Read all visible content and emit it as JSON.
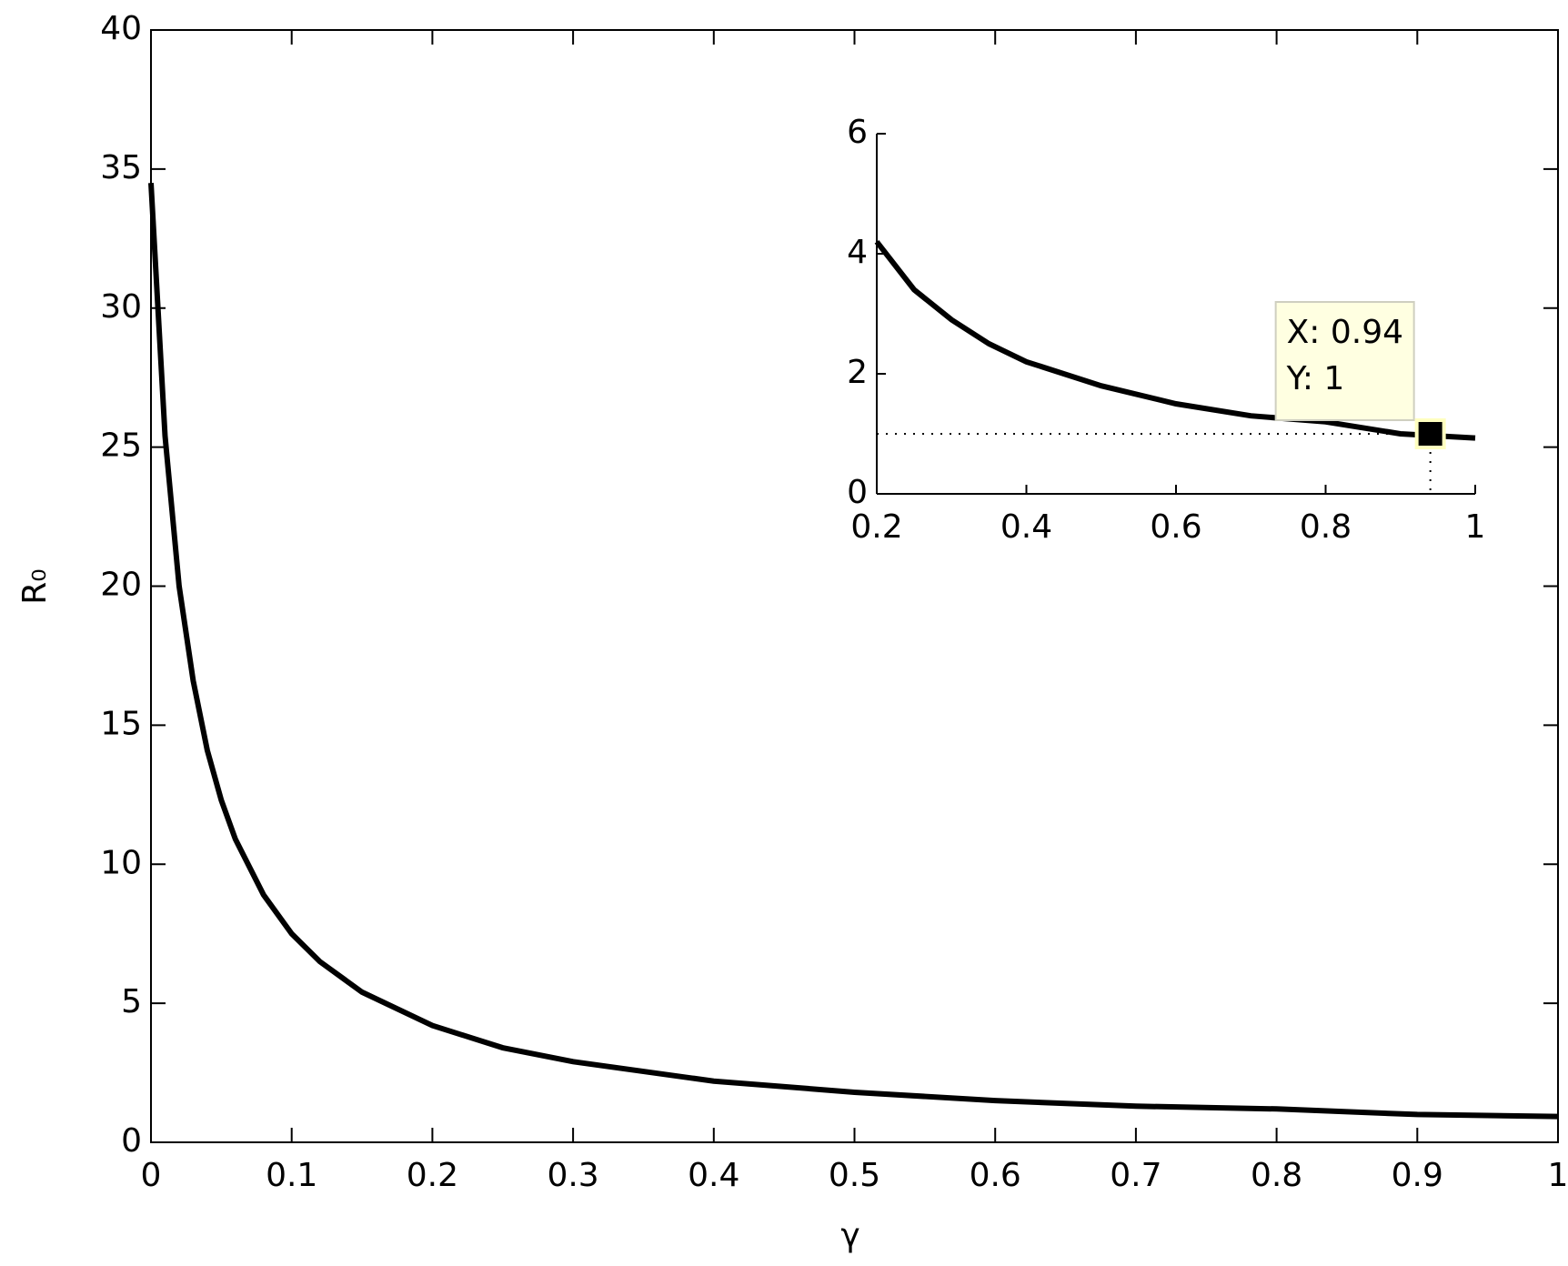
{
  "chart_data": [
    {
      "type": "line",
      "xlabel": "γ",
      "ylabel": "R₀",
      "xlim": [
        0,
        1
      ],
      "ylim": [
        0,
        40
      ],
      "xticks": [
        0,
        0.1,
        0.2,
        0.3,
        0.4,
        0.5,
        0.6,
        0.7,
        0.8,
        0.9,
        1
      ],
      "yticks": [
        0,
        5,
        10,
        15,
        20,
        25,
        30,
        35,
        40
      ],
      "series": [
        {
          "color": "#000000",
          "x": [
            0,
            0.01,
            0.02,
            0.03,
            0.04,
            0.05,
            0.06,
            0.08,
            0.1,
            0.12,
            0.15,
            0.2,
            0.25,
            0.3,
            0.4,
            0.5,
            0.6,
            0.7,
            0.8,
            0.9,
            1
          ],
          "values": [
            34.5,
            25.4,
            20.0,
            16.6,
            14.1,
            12.3,
            10.9,
            8.9,
            7.5,
            6.5,
            5.4,
            4.2,
            3.4,
            2.9,
            2.2,
            1.8,
            1.5,
            1.3,
            1.2,
            1.0,
            0.93
          ]
        }
      ]
    },
    {
      "type": "line",
      "xlim": [
        0.2,
        1
      ],
      "ylim": [
        0,
        6
      ],
      "xticks": [
        0.2,
        0.4,
        0.6,
        0.8,
        1
      ],
      "yticks": [
        0,
        2,
        4,
        6
      ],
      "series": [
        {
          "color": "#000000",
          "x": [
            0.2,
            0.25,
            0.3,
            0.35,
            0.4,
            0.5,
            0.6,
            0.7,
            0.8,
            0.9,
            1
          ],
          "values": [
            4.2,
            3.4,
            2.9,
            2.5,
            2.2,
            1.8,
            1.5,
            1.3,
            1.2,
            1.0,
            0.93
          ]
        }
      ],
      "datatip": {
        "x": 0.94,
        "y": 1,
        "x_label": "X: 0.94",
        "y_label": "Y: 1"
      }
    }
  ]
}
